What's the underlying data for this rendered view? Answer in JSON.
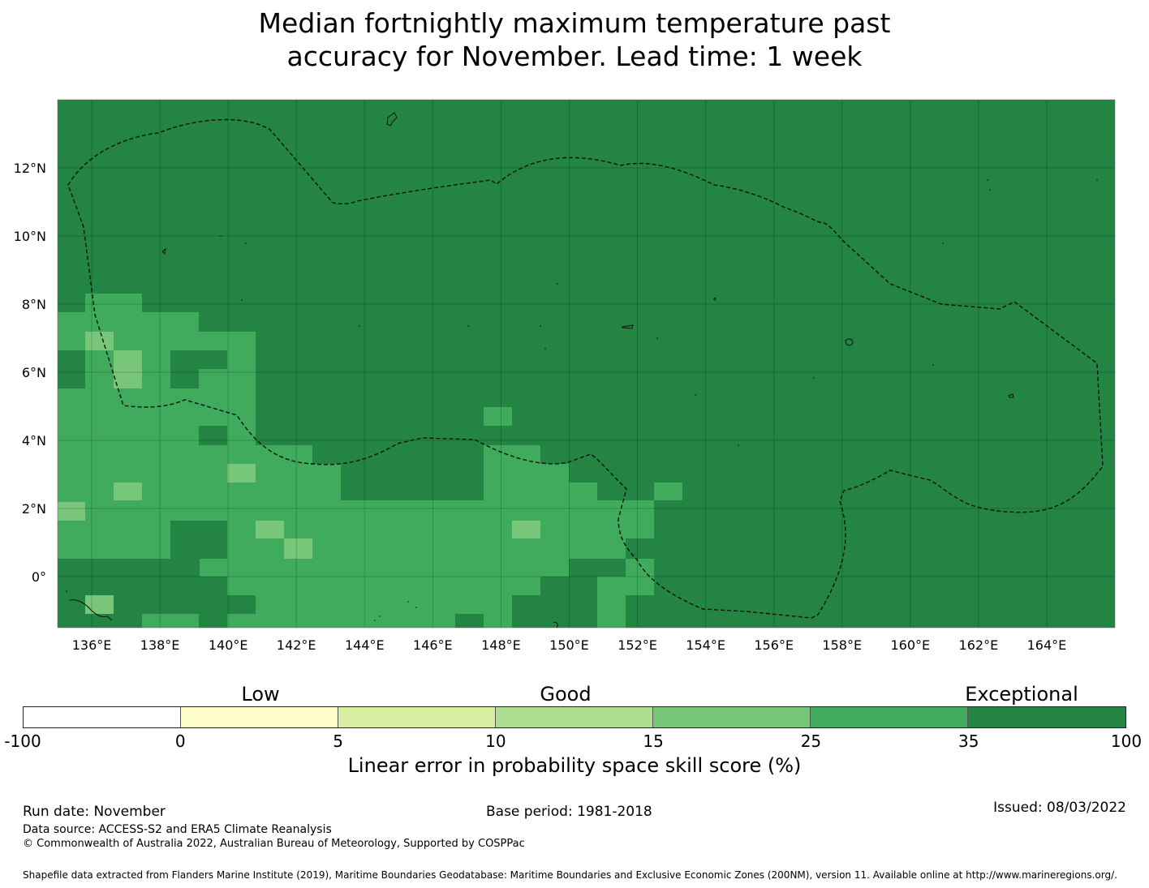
{
  "title": {
    "line1": "Median fortnightly maximum temperature past",
    "line2": "accuracy for November. Lead time: 1 week"
  },
  "map": {
    "lon_range": [
      135.0,
      166.0
    ],
    "lat_range": [
      -1.5,
      14.0
    ],
    "lon_ticks": [
      "136°E",
      "138°E",
      "140°E",
      "142°E",
      "144°E",
      "146°E",
      "148°E",
      "150°E",
      "152°E",
      "154°E",
      "156°E",
      "158°E",
      "160°E",
      "162°E",
      "164°E"
    ],
    "lat_ticks": [
      "12°N",
      "10°N",
      "8°N",
      "6°N",
      "4°N",
      "2°N",
      "0°"
    ],
    "lon_tick_values": [
      136,
      138,
      140,
      142,
      144,
      146,
      148,
      150,
      152,
      154,
      156,
      158,
      160,
      162,
      164
    ],
    "lat_tick_values": [
      12,
      10,
      8,
      6,
      4,
      2,
      0
    ],
    "background_class": "Exceptional (35 to 100)",
    "colors": {
      "exceptional": "#238443",
      "good_high": "#41ab5d",
      "good_mid": "#78c679",
      "good_low": "#addd8e"
    }
  },
  "colorbar": {
    "categories": [
      "Low",
      "Good",
      "Exceptional"
    ],
    "ticks": [
      "-100",
      "0",
      "5",
      "10",
      "15",
      "25",
      "35",
      "100"
    ],
    "colors": [
      "#ffffff",
      "#ffffcc",
      "#d9f0a3",
      "#addd8e",
      "#78c679",
      "#41ab5d",
      "#238443"
    ],
    "label": "Linear error in probability space skill score (%)"
  },
  "footer": {
    "run_date": "Run date: November",
    "base_period": "Base period: 1981-2018",
    "issued": "Issued: 08/03/2022",
    "data_source": "Data source: ACCESS-S2 and ERA5 Climate Reanalysis",
    "copyright": "© Commonwealth of Australia 2022, Australian Bureau of Meteorology, Supported by COSPPac",
    "shapefile": "Shapefile data extracted from Flanders Marine Institute (2019), Maritime Boundaries Geodatabase: Maritime Boundaries and Exclusive Economic Zones (200NM), version 11. Available online at http://www.marineregions.org/."
  }
}
